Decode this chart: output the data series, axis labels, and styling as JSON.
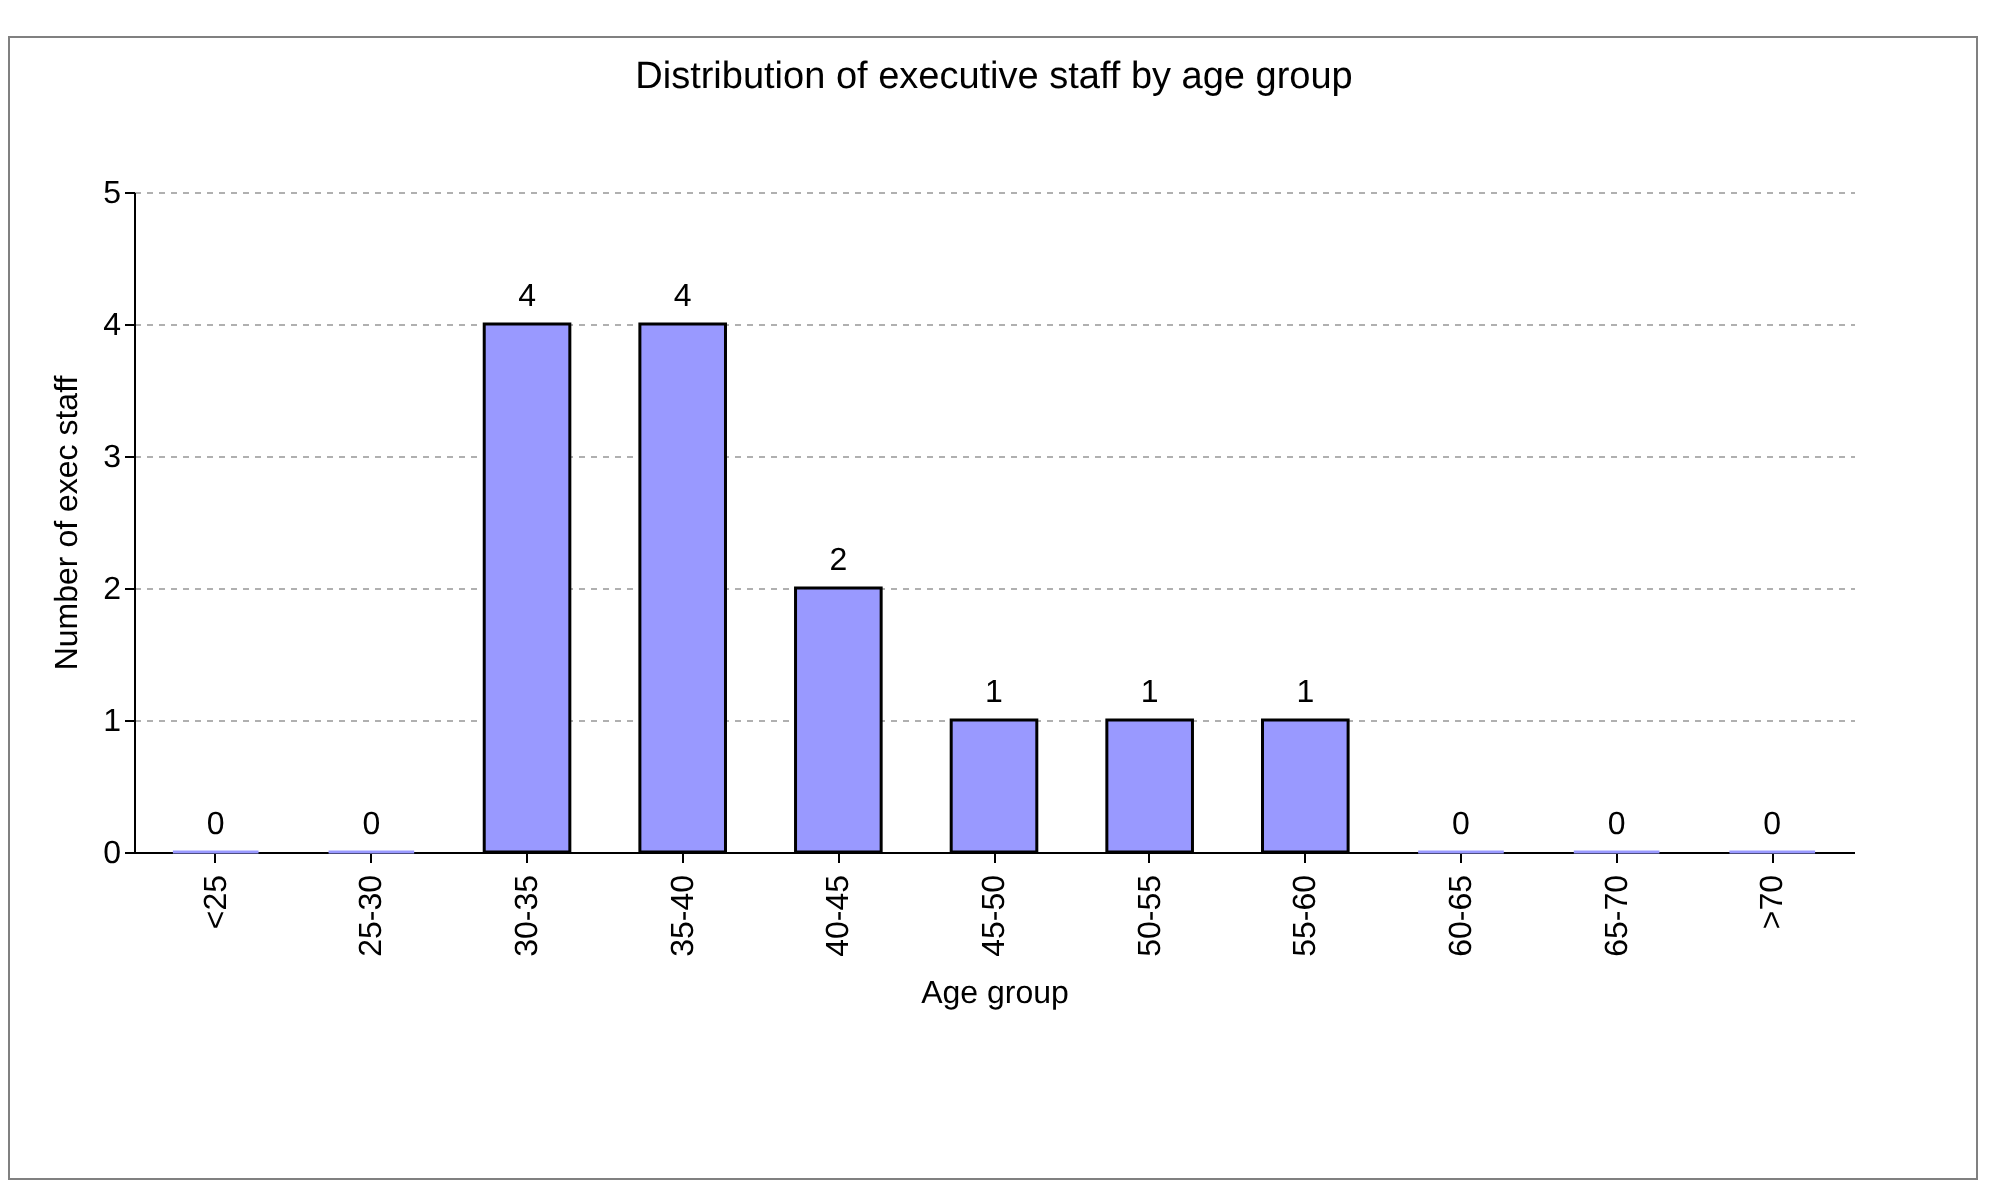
{
  "chart_data": {
    "type": "bar",
    "title": "Distribution of executive staff by age group",
    "xlabel": "Age group",
    "ylabel": "Number of exec staff",
    "categories": [
      "<25",
      "25-30",
      "30-35",
      "35-40",
      "40-45",
      "45-50",
      "50-55",
      "55-60",
      "60-65",
      "65-70",
      ">70"
    ],
    "values": [
      0,
      0,
      4,
      4,
      2,
      1,
      1,
      1,
      0,
      0,
      0
    ],
    "color": "#9999ff",
    "ylim": [
      0,
      5
    ],
    "yticks": [
      0,
      1,
      2,
      3,
      4,
      5
    ],
    "grid": "y",
    "data_labels": true
  }
}
